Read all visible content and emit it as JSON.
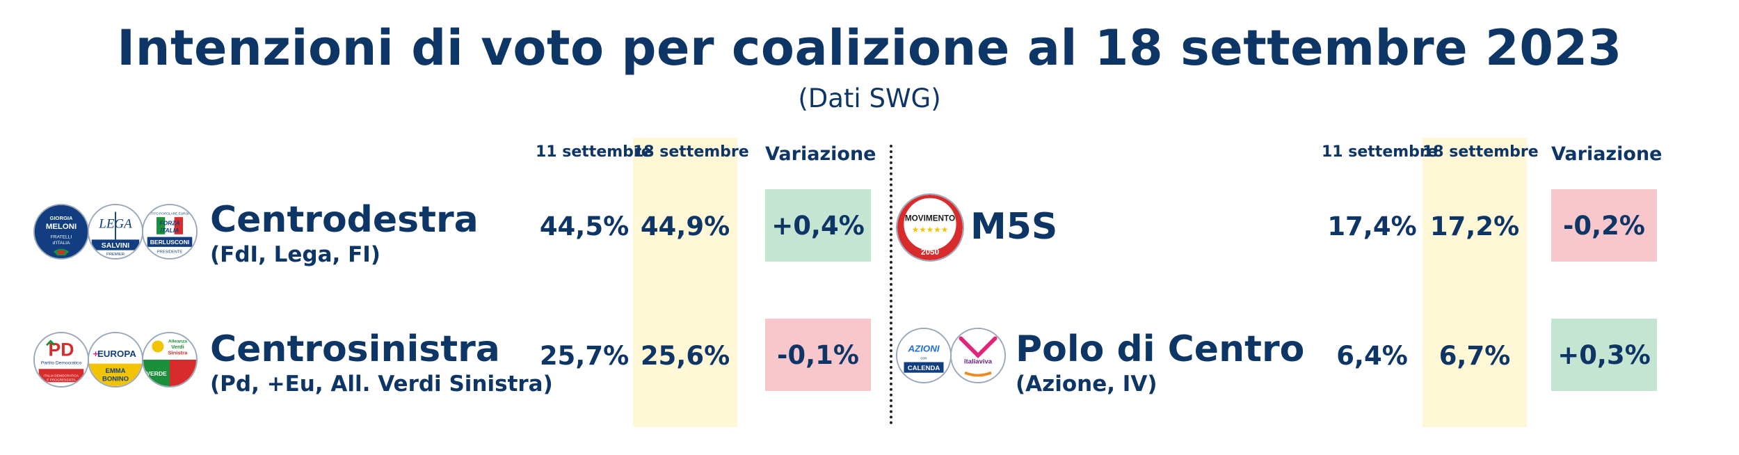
{
  "title": "Intenzioni di voto per coalizione al 18 settembre 2023",
  "subtitle": "(Dati SWG)",
  "headers": {
    "prev": "11 settembre",
    "curr": "18 settembre",
    "var": "Variazione"
  },
  "colors": {
    "text": "#0d3566",
    "highlight_column": "#fff7d6",
    "increase": "#c3e5d2",
    "decrease": "#f7c7cc"
  },
  "coalitions": {
    "centrodestra": {
      "name": "Centrodestra",
      "parties": "(FdI, Lega, FI)",
      "prev": "44,5%",
      "curr": "44,9%",
      "var": "+0,4%",
      "logos": [
        "fratelli-ditalia-logo",
        "lega-logo",
        "forza-italia-logo"
      ],
      "logo_text": [
        "GIORGIA MELONI",
        "FRATELLI D'ITALIA",
        "LEGA",
        "SALVINI",
        "PREMIER",
        "FORZA ITALIA",
        "BERLUSCONI",
        "PRESIDENTE"
      ]
    },
    "centrosinistra": {
      "name": "Centrosinistra",
      "parties": "(Pd, +Eu, All. Verdi Sinistra)",
      "prev": "25,7%",
      "curr": "25,6%",
      "var": "-0,1%",
      "logos": [
        "partito-democratico-logo",
        "piu-europa-logo",
        "alleanza-verdi-sinistra-logo"
      ],
      "logo_text": [
        "PD",
        "Partito Democratico",
        "EUROPA",
        "EMMA BONINO",
        "Alleanza Verdi Sinistra",
        "VERDE"
      ]
    },
    "m5s": {
      "name": "M5S",
      "parties": "",
      "prev": "17,4%",
      "curr": "17,2%",
      "var": "-0,2%",
      "logos": [
        "movimento-5-stelle-logo"
      ],
      "logo_text": [
        "MOVIMENTO",
        "2050"
      ]
    },
    "polo": {
      "name": "Polo di Centro",
      "parties": "(Azione, IV)",
      "prev": "6,4%",
      "curr": "6,7%",
      "var": "+0,3%",
      "logos": [
        "azione-logo",
        "italia-viva-logo"
      ],
      "logo_text": [
        "AZIONE",
        "CALENDA",
        "italiaviva"
      ]
    }
  },
  "chart_data": {
    "type": "table",
    "title": "Intenzioni di voto per coalizione al 18 settembre 2023",
    "subtitle": "(Dati SWG)",
    "columns": [
      "11 settembre",
      "18 settembre",
      "Variazione"
    ],
    "rows": [
      {
        "coalition": "Centrodestra",
        "parties": "(FdI, Lega, FI)",
        "values": [
          44.5,
          44.9,
          0.4
        ]
      },
      {
        "coalition": "Centrosinistra",
        "parties": "(Pd, +Eu, All. Verdi Sinistra)",
        "values": [
          25.7,
          25.6,
          -0.1
        ]
      },
      {
        "coalition": "M5S",
        "parties": "",
        "values": [
          17.4,
          17.2,
          -0.2
        ]
      },
      {
        "coalition": "Polo di Centro",
        "parties": "(Azione, IV)",
        "values": [
          6.4,
          6.7,
          0.3
        ]
      }
    ]
  }
}
